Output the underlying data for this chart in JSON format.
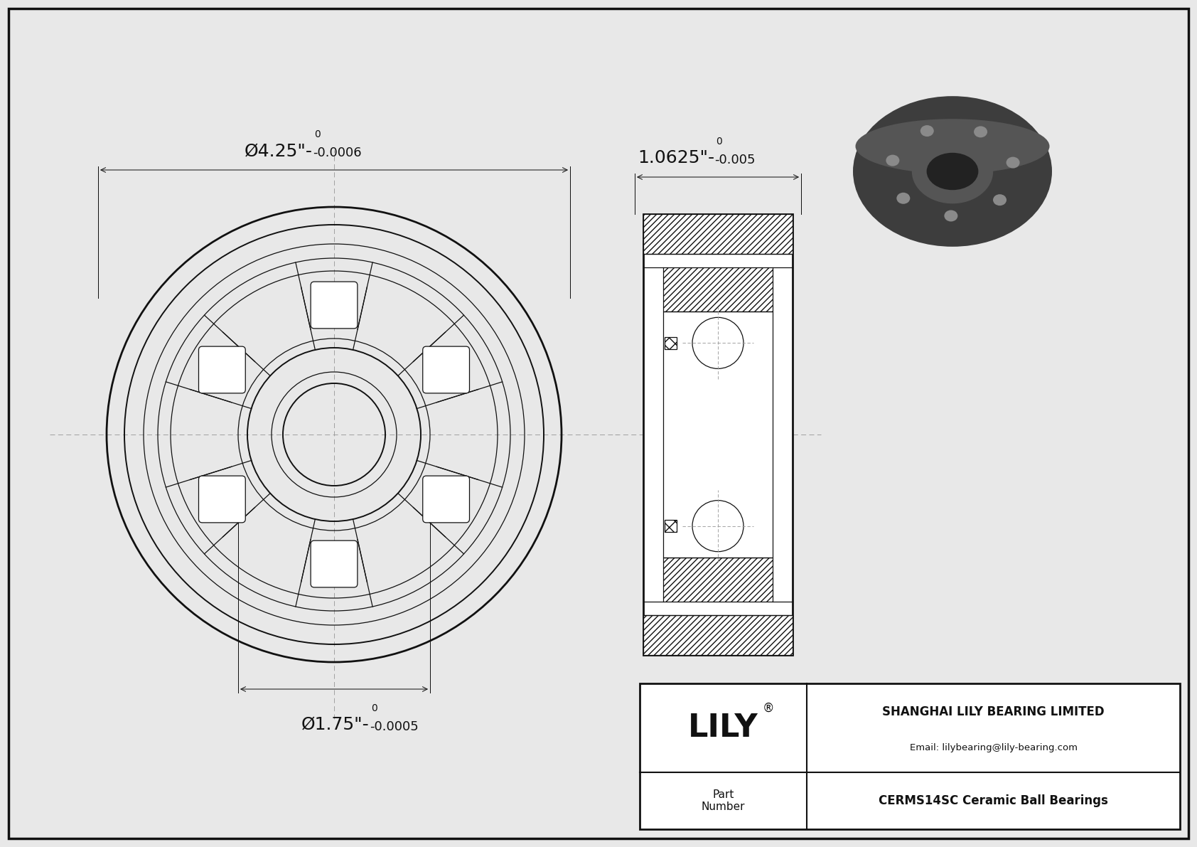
{
  "bg_color": "#e8e8e8",
  "line_color": "#111111",
  "dim_color": "#111111",
  "dashed_color": "#999999",
  "title_company": "SHANGHAI LILY BEARING LIMITED",
  "title_email": "Email: lilybearing@lily-bearing.com",
  "part_label": "Part\nNumber",
  "part_value": "CERMS14SC Ceramic Ball Bearings",
  "lily_text": "LILY",
  "dim_od_main": "Ø4.25\"-",
  "dim_od_tol": "0.0006",
  "dim_od_sup": "0",
  "dim_id_main": "Ø1.75\"-",
  "dim_id_tol": "0.0005",
  "dim_id_sup": "0",
  "dim_w_main": "1.0625\"-",
  "dim_w_tol": "0.005",
  "dim_w_sup": "0",
  "lw_heavy": 2.0,
  "lw_med": 1.4,
  "lw_thin": 0.9
}
